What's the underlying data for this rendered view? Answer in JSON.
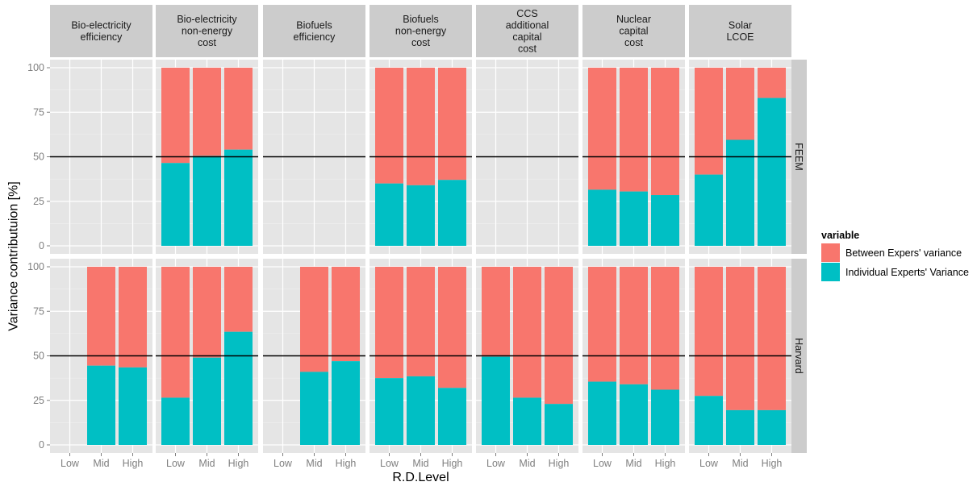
{
  "chart_data": {
    "type": "bar",
    "stacked": true,
    "title": "",
    "xlabel": "R.D.Level",
    "ylabel": "Variance contributuion [%]",
    "ylim": [
      0,
      100
    ],
    "yticks": [
      "0",
      "25",
      "50",
      "75",
      "100"
    ],
    "categories": [
      "Low",
      "Mid",
      "High"
    ],
    "reference_line": 50,
    "columns": [
      {
        "label": "Bio-electricity\nefficiency"
      },
      {
        "label": "Bio-electricity\nnon-energy\ncost"
      },
      {
        "label": "Biofuels\nefficiency"
      },
      {
        "label": "Biofuels\nnon-energy\ncost"
      },
      {
        "label": "CCS\nadditional\ncapital\ncost"
      },
      {
        "label": "Nuclear\ncapital\ncost"
      },
      {
        "label": "Solar\nLCOE"
      }
    ],
    "rows": [
      {
        "label": "FEEM"
      },
      {
        "label": "Harvard"
      }
    ],
    "legend": {
      "title": "variable",
      "position": "right",
      "entries": [
        {
          "name": "Between Expers' variance",
          "color": "#F8766D"
        },
        {
          "name": "Individual Experts' Variance",
          "color": "#00BFC4"
        }
      ]
    },
    "panels": [
      {
        "row": 0,
        "col": 0,
        "individual": [
          null,
          null,
          null
        ]
      },
      {
        "row": 0,
        "col": 1,
        "individual": [
          46.5,
          50.5,
          54
        ]
      },
      {
        "row": 0,
        "col": 2,
        "individual": [
          null,
          null,
          null
        ]
      },
      {
        "row": 0,
        "col": 3,
        "individual": [
          35,
          34,
          37
        ]
      },
      {
        "row": 0,
        "col": 4,
        "individual": [
          null,
          null,
          null
        ]
      },
      {
        "row": 0,
        "col": 5,
        "individual": [
          31.5,
          30.5,
          28.5
        ]
      },
      {
        "row": 0,
        "col": 6,
        "individual": [
          40,
          59.5,
          83
        ]
      },
      {
        "row": 1,
        "col": 0,
        "individual": [
          null,
          44.5,
          43.5
        ]
      },
      {
        "row": 1,
        "col": 1,
        "individual": [
          26.5,
          49,
          63.5
        ]
      },
      {
        "row": 1,
        "col": 2,
        "individual": [
          null,
          41,
          47
        ]
      },
      {
        "row": 1,
        "col": 3,
        "individual": [
          37.5,
          38.5,
          32
        ]
      },
      {
        "row": 1,
        "col": 4,
        "individual": [
          49.5,
          26.5,
          23
        ]
      },
      {
        "row": 1,
        "col": 5,
        "individual": [
          35.5,
          34,
          31
        ]
      },
      {
        "row": 1,
        "col": 6,
        "individual": [
          27.5,
          19.5,
          19.5
        ]
      }
    ],
    "grid": true
  }
}
